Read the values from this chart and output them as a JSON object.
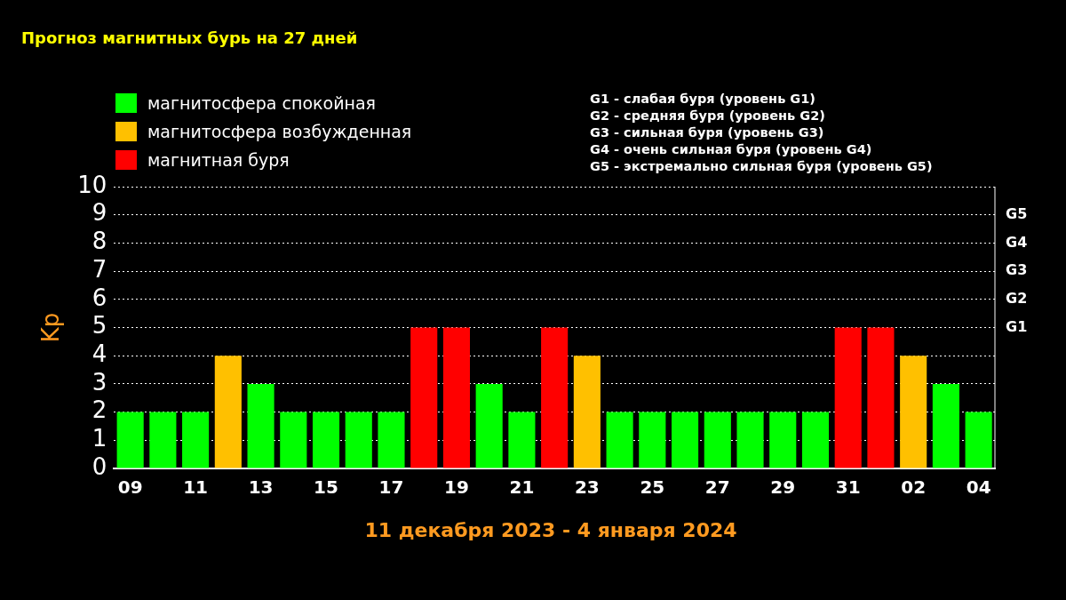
{
  "chart_data": {
    "type": "bar",
    "title": "Прогноз магнитных бурь на 27 дней",
    "xlabel": "11 декабря 2023 - 4 января 2024",
    "ylabel": "Kp",
    "categories": [
      "09",
      null,
      "11",
      null,
      "13",
      null,
      "15",
      null,
      "17",
      null,
      "19",
      null,
      "21",
      null,
      "23",
      null,
      "25",
      null,
      "27",
      null,
      "29",
      null,
      "31",
      null,
      "02",
      null,
      "04"
    ],
    "series": [
      {
        "name": "магнитосфера спокойная",
        "color": "#00ff00",
        "values": [
          2,
          2,
          2,
          null,
          3,
          2,
          2,
          2,
          2,
          null,
          null,
          3,
          2,
          null,
          null,
          2,
          2,
          2,
          2,
          2,
          2,
          2,
          null,
          null,
          null,
          3,
          2
        ]
      },
      {
        "name": "магнитосфера возбужденная",
        "color": "#ffc000",
        "values": [
          null,
          null,
          null,
          4,
          null,
          null,
          null,
          null,
          null,
          null,
          null,
          null,
          null,
          null,
          4,
          null,
          null,
          null,
          null,
          null,
          null,
          null,
          null,
          null,
          4,
          null,
          null
        ]
      },
      {
        "name": "магнитная буря",
        "color": "#ff0000",
        "values": [
          null,
          null,
          null,
          null,
          null,
          null,
          null,
          null,
          null,
          5,
          5,
          null,
          null,
          5,
          null,
          null,
          null,
          null,
          null,
          null,
          null,
          null,
          5,
          5,
          null,
          null,
          null
        ]
      }
    ],
    "stacked": true,
    "legend": "top left",
    "grid": "y",
    "ylim": [
      0,
      10
    ],
    "yticks": [
      0,
      1,
      2,
      3,
      4,
      5,
      6,
      7,
      8,
      9,
      10
    ],
    "annotations": [
      "G1",
      "G2",
      "G3",
      "G4",
      "G5",
      "G1 - слабая буря (уровень G1)",
      "G2 - средняя буря (уровень G2)",
      "G3 - сильная буря (уровень G3)",
      "G4 - очень сильная буря (уровень G4)",
      "G5 - экстремально сильная буря (уровень G5)"
    ]
  }
}
